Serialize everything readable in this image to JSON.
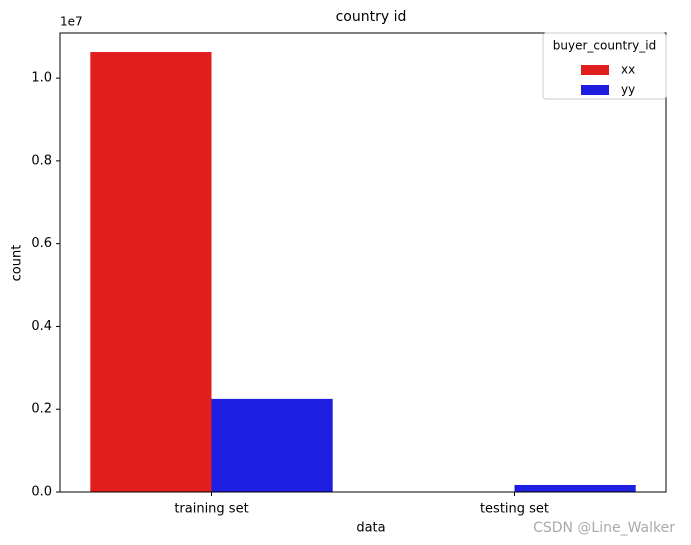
{
  "chart_data": {
    "type": "bar",
    "title": "country id",
    "x_label": "data",
    "y_label": "count",
    "y_offset_label": "1e7",
    "categories": [
      "training set",
      "testing set"
    ],
    "legend_title": "buyer_country_id",
    "legend_loc": "upper right",
    "series": [
      {
        "name": "xx",
        "color": "#e01e1e",
        "values": [
          10630000,
          0
        ]
      },
      {
        "name": "yy",
        "color": "#1e1ee0",
        "values": [
          2250000,
          170000
        ]
      }
    ],
    "ylim": [
      0,
      11090000
    ],
    "yticks": [
      {
        "value": 0,
        "label": "0.0"
      },
      {
        "value": 2000000,
        "label": "0.2"
      },
      {
        "value": 4000000,
        "label": "0.4"
      },
      {
        "value": 6000000,
        "label": "0.6"
      },
      {
        "value": 8000000,
        "label": "0.8"
      },
      {
        "value": 10000000,
        "label": "1.0"
      }
    ],
    "watermark": "CSDN @Line_Walker"
  }
}
